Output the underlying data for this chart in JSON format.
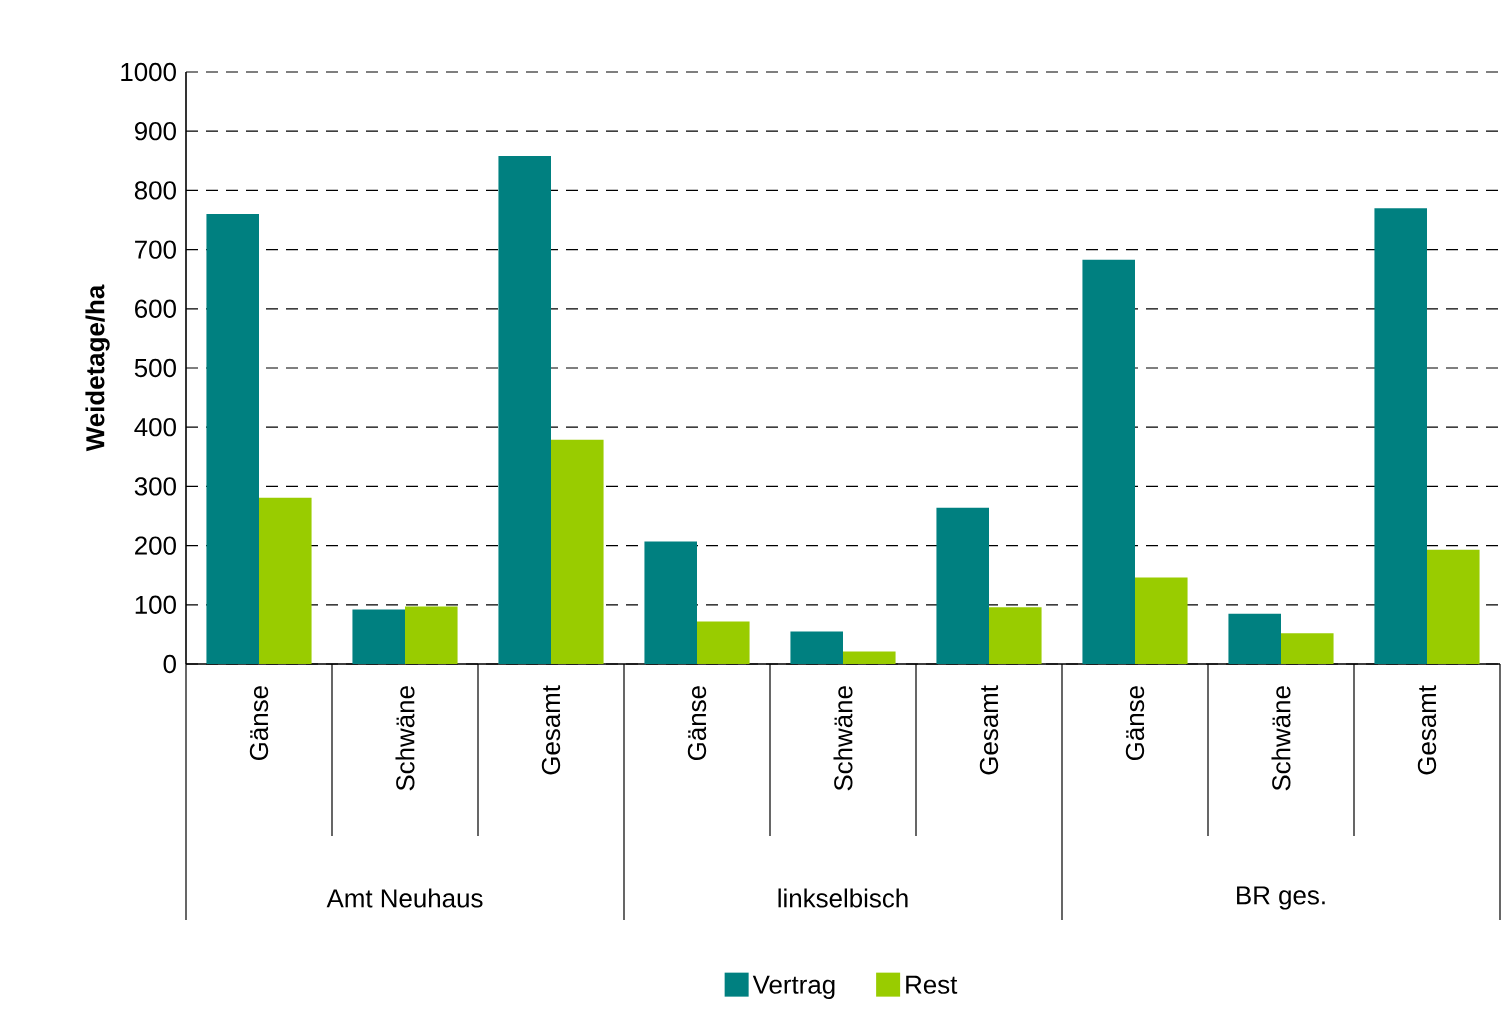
{
  "chart_data": {
    "type": "bar",
    "ylabel": "Weidetage/ha",
    "categories": [
      "Gänse",
      "Schwäne",
      "Gesamt",
      "Gänse",
      "Schwäne",
      "Gesamt",
      "Gänse",
      "Schwäne",
      "Gesamt"
    ],
    "annotations": [
      "Amt Neuhaus",
      "linkselbisch",
      "BR ges."
    ],
    "series": [
      {
        "name": "Vertrag",
        "color": "#008080",
        "values": [
          760,
          92,
          858,
          207,
          55,
          264,
          683,
          85,
          770
        ]
      },
      {
        "name": "Rest",
        "color": "#99cc00",
        "values": [
          281,
          97,
          379,
          72,
          21,
          96,
          146,
          52,
          193
        ]
      }
    ],
    "ylim": [
      0,
      1000
    ],
    "yticks": [
      0,
      100,
      200,
      300,
      400,
      500,
      600,
      700,
      800,
      900,
      1000
    ],
    "grid": "y",
    "legend": "bottom"
  }
}
